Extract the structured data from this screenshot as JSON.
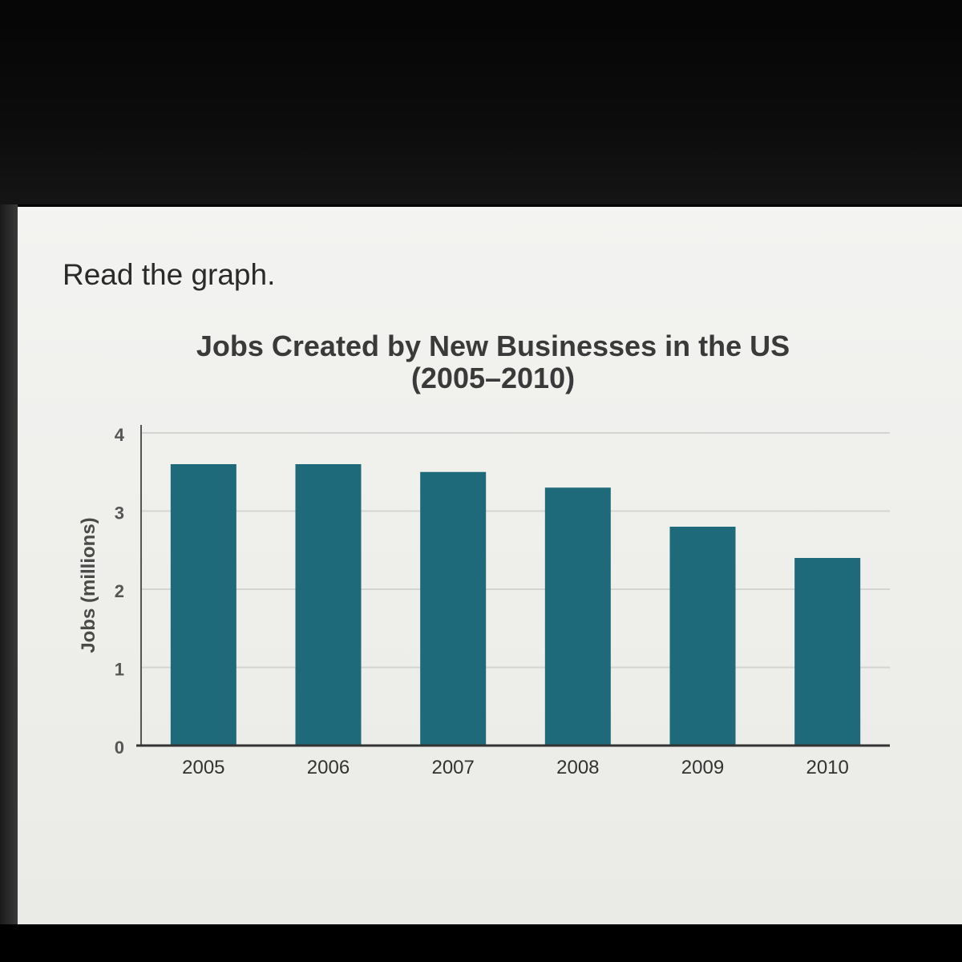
{
  "instruction": "Read the graph.",
  "chart_data": {
    "type": "bar",
    "title": "Jobs Created by New Businesses in the US",
    "subtitle": "(2005–2010)",
    "xlabel": "",
    "ylabel": "Jobs (millions)",
    "categories": [
      "2005",
      "2006",
      "2007",
      "2008",
      "2009",
      "2010"
    ],
    "values": [
      3.6,
      3.6,
      3.5,
      3.3,
      2.8,
      2.4
    ],
    "ylim": [
      0,
      4
    ],
    "yticks": [
      "0",
      "1",
      "2",
      "3",
      "4"
    ],
    "grid": true,
    "bar_color": "#1e6a7a"
  }
}
